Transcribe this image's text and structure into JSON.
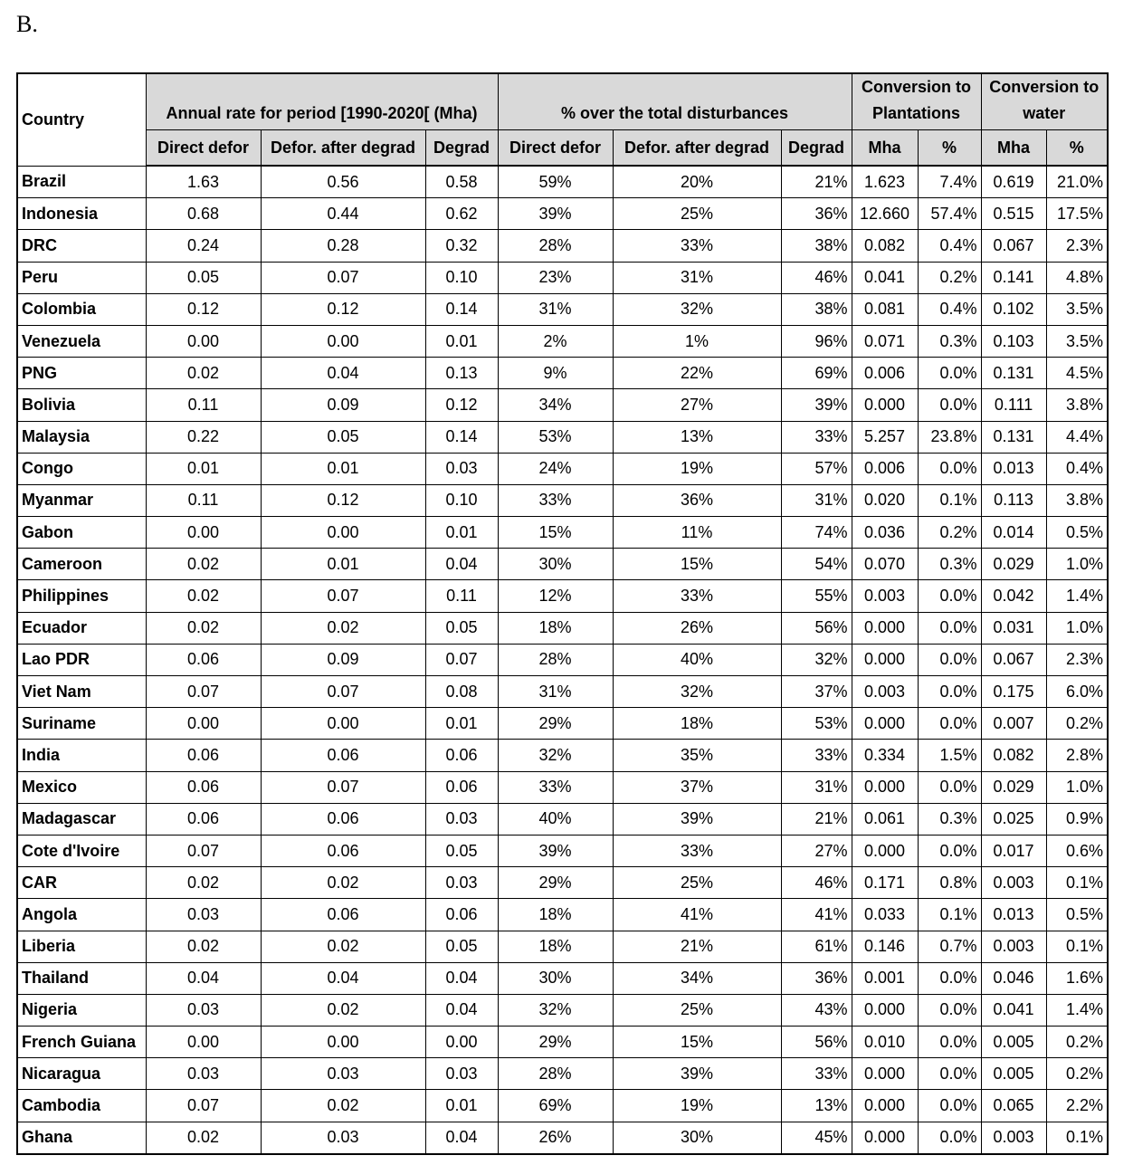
{
  "label": "B.",
  "table": {
    "header": {
      "country": "Country",
      "groups": [
        "Annual rate for period [1990-2020[ (Mha)",
        "% over the total disturbances",
        "Conversion to Plantations",
        "Conversion to water"
      ],
      "subheaders": [
        "Direct defor",
        "Defor. after degrad",
        "Degrad",
        "Direct defor",
        "Defor. after degrad",
        "Degrad",
        "Mha",
        "%",
        "Mha",
        "%"
      ]
    },
    "rows": [
      [
        "Brazil",
        "1.63",
        "0.56",
        "0.58",
        "59%",
        "20%",
        "21%",
        "1.623",
        "7.4%",
        "0.619",
        "21.0%"
      ],
      [
        "Indonesia",
        "0.68",
        "0.44",
        "0.62",
        "39%",
        "25%",
        "36%",
        "12.660",
        "57.4%",
        "0.515",
        "17.5%"
      ],
      [
        "DRC",
        "0.24",
        "0.28",
        "0.32",
        "28%",
        "33%",
        "38%",
        "0.082",
        "0.4%",
        "0.067",
        "2.3%"
      ],
      [
        "Peru",
        "0.05",
        "0.07",
        "0.10",
        "23%",
        "31%",
        "46%",
        "0.041",
        "0.2%",
        "0.141",
        "4.8%"
      ],
      [
        "Colombia",
        "0.12",
        "0.12",
        "0.14",
        "31%",
        "32%",
        "38%",
        "0.081",
        "0.4%",
        "0.102",
        "3.5%"
      ],
      [
        "Venezuela",
        "0.00",
        "0.00",
        "0.01",
        "2%",
        "1%",
        "96%",
        "0.071",
        "0.3%",
        "0.103",
        "3.5%"
      ],
      [
        "PNG",
        "0.02",
        "0.04",
        "0.13",
        "9%",
        "22%",
        "69%",
        "0.006",
        "0.0%",
        "0.131",
        "4.5%"
      ],
      [
        "Bolivia",
        "0.11",
        "0.09",
        "0.12",
        "34%",
        "27%",
        "39%",
        "0.000",
        "0.0%",
        "0.111",
        "3.8%"
      ],
      [
        "Malaysia",
        "0.22",
        "0.05",
        "0.14",
        "53%",
        "13%",
        "33%",
        "5.257",
        "23.8%",
        "0.131",
        "4.4%"
      ],
      [
        "Congo",
        "0.01",
        "0.01",
        "0.03",
        "24%",
        "19%",
        "57%",
        "0.006",
        "0.0%",
        "0.013",
        "0.4%"
      ],
      [
        "Myanmar",
        "0.11",
        "0.12",
        "0.10",
        "33%",
        "36%",
        "31%",
        "0.020",
        "0.1%",
        "0.113",
        "3.8%"
      ],
      [
        "Gabon",
        "0.00",
        "0.00",
        "0.01",
        "15%",
        "11%",
        "74%",
        "0.036",
        "0.2%",
        "0.014",
        "0.5%"
      ],
      [
        "Cameroon",
        "0.02",
        "0.01",
        "0.04",
        "30%",
        "15%",
        "54%",
        "0.070",
        "0.3%",
        "0.029",
        "1.0%"
      ],
      [
        "Philippines",
        "0.02",
        "0.07",
        "0.11",
        "12%",
        "33%",
        "55%",
        "0.003",
        "0.0%",
        "0.042",
        "1.4%"
      ],
      [
        "Ecuador",
        "0.02",
        "0.02",
        "0.05",
        "18%",
        "26%",
        "56%",
        "0.000",
        "0.0%",
        "0.031",
        "1.0%"
      ],
      [
        "Lao PDR",
        "0.06",
        "0.09",
        "0.07",
        "28%",
        "40%",
        "32%",
        "0.000",
        "0.0%",
        "0.067",
        "2.3%"
      ],
      [
        "Viet Nam",
        "0.07",
        "0.07",
        "0.08",
        "31%",
        "32%",
        "37%",
        "0.003",
        "0.0%",
        "0.175",
        "6.0%"
      ],
      [
        "Suriname",
        "0.00",
        "0.00",
        "0.01",
        "29%",
        "18%",
        "53%",
        "0.000",
        "0.0%",
        "0.007",
        "0.2%"
      ],
      [
        "India",
        "0.06",
        "0.06",
        "0.06",
        "32%",
        "35%",
        "33%",
        "0.334",
        "1.5%",
        "0.082",
        "2.8%"
      ],
      [
        "Mexico",
        "0.06",
        "0.07",
        "0.06",
        "33%",
        "37%",
        "31%",
        "0.000",
        "0.0%",
        "0.029",
        "1.0%"
      ],
      [
        "Madagascar",
        "0.06",
        "0.06",
        "0.03",
        "40%",
        "39%",
        "21%",
        "0.061",
        "0.3%",
        "0.025",
        "0.9%"
      ],
      [
        "Cote d'Ivoire",
        "0.07",
        "0.06",
        "0.05",
        "39%",
        "33%",
        "27%",
        "0.000",
        "0.0%",
        "0.017",
        "0.6%"
      ],
      [
        "CAR",
        "0.02",
        "0.02",
        "0.03",
        "29%",
        "25%",
        "46%",
        "0.171",
        "0.8%",
        "0.003",
        "0.1%"
      ],
      [
        "Angola",
        "0.03",
        "0.06",
        "0.06",
        "18%",
        "41%",
        "41%",
        "0.033",
        "0.1%",
        "0.013",
        "0.5%"
      ],
      [
        "Liberia",
        "0.02",
        "0.02",
        "0.05",
        "18%",
        "21%",
        "61%",
        "0.146",
        "0.7%",
        "0.003",
        "0.1%"
      ],
      [
        "Thailand",
        "0.04",
        "0.04",
        "0.04",
        "30%",
        "34%",
        "36%",
        "0.001",
        "0.0%",
        "0.046",
        "1.6%"
      ],
      [
        "Nigeria",
        "0.03",
        "0.02",
        "0.04",
        "32%",
        "25%",
        "43%",
        "0.000",
        "0.0%",
        "0.041",
        "1.4%"
      ],
      [
        "French Guiana",
        "0.00",
        "0.00",
        "0.00",
        "29%",
        "15%",
        "56%",
        "0.010",
        "0.0%",
        "0.005",
        "0.2%"
      ],
      [
        "Nicaragua",
        "0.03",
        "0.03",
        "0.03",
        "28%",
        "39%",
        "33%",
        "0.000",
        "0.0%",
        "0.005",
        "0.2%"
      ],
      [
        "Cambodia",
        "0.07",
        "0.02",
        "0.01",
        "69%",
        "19%",
        "13%",
        "0.000",
        "0.0%",
        "0.065",
        "2.2%"
      ],
      [
        "Ghana",
        "0.02",
        "0.03",
        "0.04",
        "26%",
        "30%",
        "45%",
        "0.000",
        "0.0%",
        "0.003",
        "0.1%"
      ]
    ]
  }
}
